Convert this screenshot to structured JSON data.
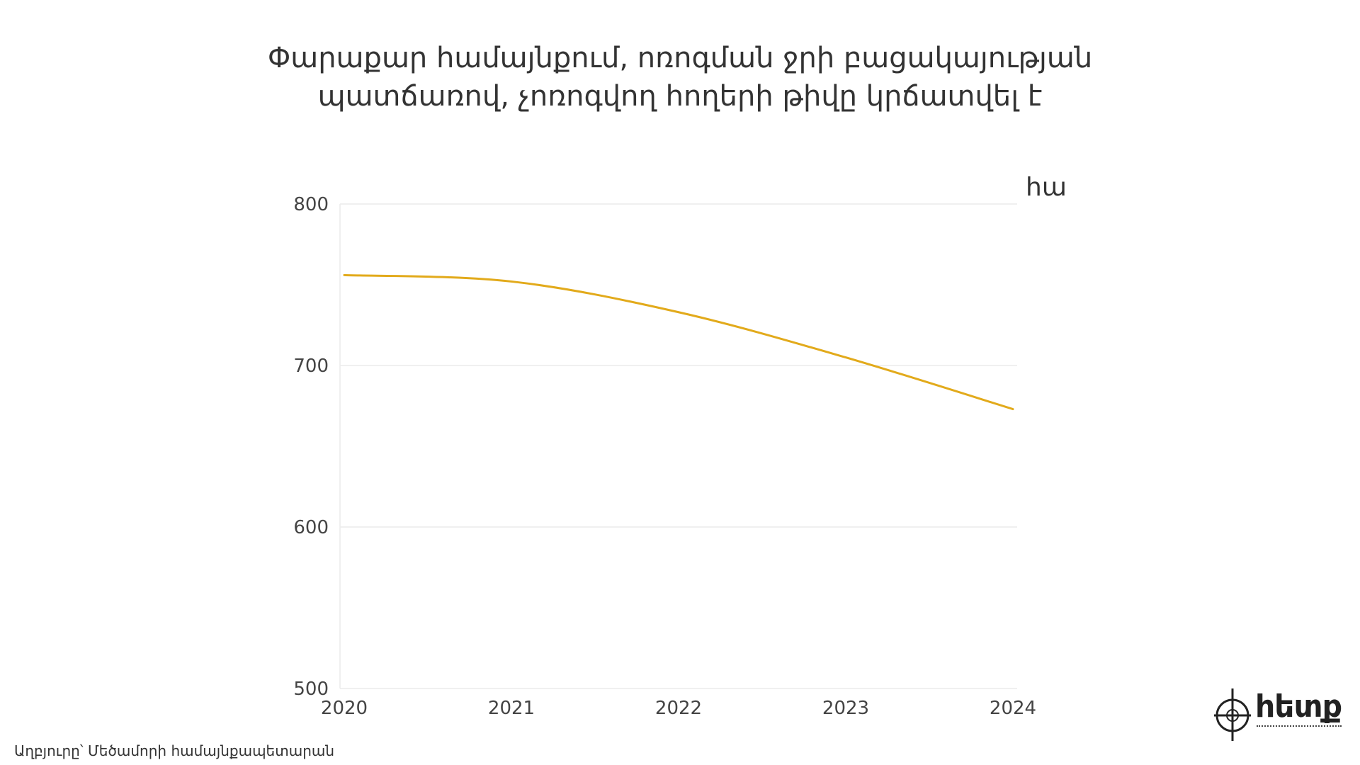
{
  "title_line1": "Փարաքար համայնքում, ոռոգման ջրի բացակայության",
  "title_line2": "պատճառով, չոռոգվող հողերի թիվը կրճատվել է",
  "unit_label": "հա",
  "source": "Աղբյուրը՝ Մեծամորի համայնքապետարան",
  "logo_text": "հետք",
  "colors": {
    "line": "#e2aa1b",
    "grid": "#ececec",
    "text": "#333333"
  },
  "chart_data": {
    "type": "line",
    "title": "Փարաքար համայնքում, ոռոգման ջրի բացակայության պատճառով, չոռոգվող հողերի թիվը կրճատվել է",
    "x": [
      "2020",
      "2021",
      "2022",
      "2023",
      "2024"
    ],
    "series": [
      {
        "values": [
          756,
          752,
          733,
          705,
          673
        ]
      }
    ],
    "xlabel": "",
    "ylabel": "հա",
    "ylim": [
      500,
      800
    ],
    "yticks": [
      "500",
      "600",
      "700",
      "800"
    ],
    "grid": true,
    "smooth": true
  }
}
